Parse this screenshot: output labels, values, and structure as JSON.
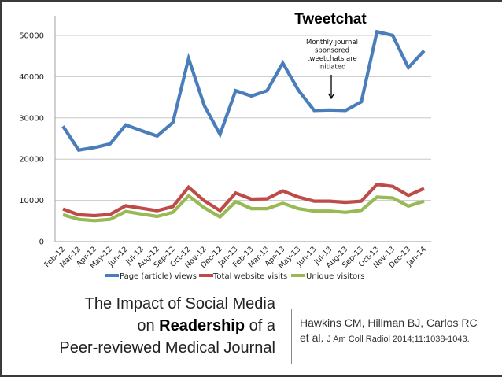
{
  "slide": {
    "title_line1": "The Impact of Social Media",
    "title_line2_pre": "on ",
    "title_line2_bold": "Readership",
    "title_line2_post": " of a",
    "title_line3": "Peer-reviewed Medical Journal",
    "citation_line1": "Hawkins CM, Hillman BJ, Carlos RC",
    "citation_line2_pre": "et al. ",
    "citation_line2_small": "J Am Coll Radiol 2014;11:1038-1043."
  },
  "chart_data": {
    "type": "line",
    "title": "",
    "xlabel": "",
    "ylabel": "",
    "ylim": [
      0,
      55000
    ],
    "yticks": [
      0,
      10000,
      20000,
      30000,
      40000,
      50000
    ],
    "grid": true,
    "legend_position": "bottom",
    "categories": [
      "Feb-12",
      "Mar-12",
      "Apr-12",
      "May-12",
      "Jun-12",
      "Jul-12",
      "Aug-12",
      "Sep-12",
      "Oct-12",
      "Nov-12",
      "Dec-12",
      "Jan-13",
      "Feb-13",
      "Mar-13",
      "Apr-13",
      "May-13",
      "Jun-13",
      "Jul-13",
      "Aug-13",
      "Sep-13",
      "Oct-13",
      "Nov-13",
      "Dec-13",
      "Jan-14"
    ],
    "series": [
      {
        "name": "Page (article) views",
        "color": "#4a7ebb",
        "values": [
          28000,
          22200,
          22800,
          23700,
          28300,
          26900,
          25600,
          28900,
          44400,
          33000,
          26000,
          36600,
          35300,
          36600,
          43300,
          36700,
          31800,
          31900,
          31800,
          33900,
          50900,
          50000,
          42200,
          46300
        ]
      },
      {
        "name": "Total website visits",
        "color": "#be4b48",
        "values": [
          7900,
          6500,
          6300,
          6600,
          8700,
          8100,
          7500,
          8500,
          13200,
          9900,
          7500,
          11800,
          10300,
          10400,
          12300,
          10800,
          9800,
          9800,
          9500,
          9800,
          13900,
          13400,
          11200,
          12900
        ]
      },
      {
        "name": "Unique visitors",
        "color": "#98b954",
        "values": [
          6500,
          5400,
          5100,
          5400,
          7300,
          6700,
          6100,
          7100,
          11100,
          8200,
          6000,
          9700,
          8000,
          8000,
          9300,
          8000,
          7400,
          7400,
          7100,
          7600,
          10800,
          10600,
          8600,
          9800
        ]
      }
    ],
    "annotations": [
      {
        "title": "Tweetchat",
        "text_lines": [
          "Monthly journal",
          "sponsored",
          "tweetchats are",
          "initiated"
        ],
        "arrow_at": "Jul-13"
      }
    ]
  }
}
